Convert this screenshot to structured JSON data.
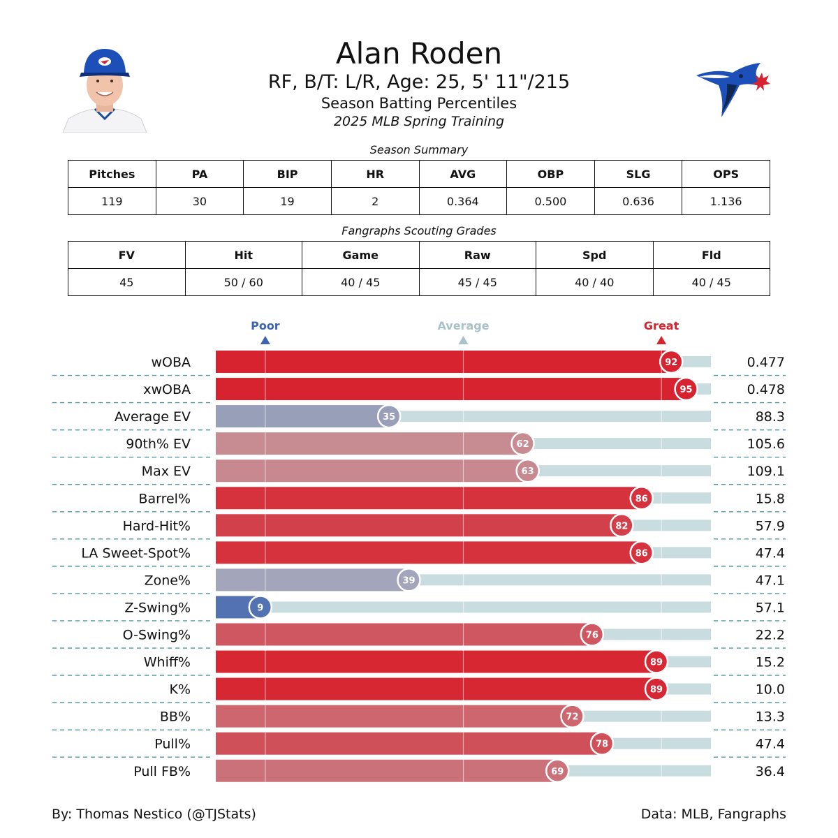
{
  "header": {
    "name": "Alan Roden",
    "info": "RF, B/T: L/R, Age: 25, 5' 11\"/215",
    "subtitle": "Season Batting Percentiles",
    "event": "2025 MLB Spring Training"
  },
  "season_summary": {
    "title": "Season Summary",
    "headers": [
      "Pitches",
      "PA",
      "BIP",
      "HR",
      "AVG",
      "OBP",
      "SLG",
      "OPS"
    ],
    "values": [
      "119",
      "30",
      "19",
      "2",
      "0.364",
      "0.500",
      "0.636",
      "1.136"
    ]
  },
  "scouting": {
    "title": "Fangraphs Scouting Grades",
    "headers": [
      "FV",
      "Hit",
      "Game",
      "Raw",
      "Spd",
      "Fld"
    ],
    "values": [
      "45",
      "50 / 60",
      "40 / 45",
      "45 / 45",
      "40 / 40",
      "40 / 45"
    ]
  },
  "icons": {
    "photo": "player-headshot",
    "logo": "toronto-blue-jays-logo"
  },
  "chart_data": {
    "type": "bar",
    "orientation": "horizontal",
    "scale_markers": [
      {
        "label": "Poor",
        "value": 10,
        "color": "#3a63b0"
      },
      {
        "label": "Average",
        "value": 50,
        "color": "#a9c2c9"
      },
      {
        "label": "Great",
        "value": 90,
        "color": "#d7232f"
      }
    ],
    "xlim": [
      0,
      100
    ],
    "colors": {
      "low": "#3a63b0",
      "mid": "#c0b8bd",
      "high": "#d7232f",
      "track": "#c9dde0"
    },
    "categories": [
      "wOBA",
      "xwOBA",
      "Average EV",
      "90th% EV",
      "Max EV",
      "Barrel%",
      "Hard-Hit%",
      "LA Sweet-Spot%",
      "Zone%",
      "Z-Swing%",
      "O-Swing%",
      "Whiff%",
      "K%",
      "BB%",
      "Pull%",
      "Pull FB%"
    ],
    "percentiles": [
      92,
      95,
      35,
      62,
      63,
      86,
      82,
      86,
      39,
      9,
      76,
      89,
      89,
      72,
      78,
      69
    ],
    "stat_values": [
      "0.477",
      "0.478",
      "88.3",
      "105.6",
      "109.1",
      "15.8",
      "57.9",
      "47.4",
      "47.1",
      "57.1",
      "22.2",
      "15.2",
      "10.0",
      "13.3",
      "47.4",
      "36.4"
    ]
  },
  "footer": {
    "credit": "By: Thomas Nestico (@TJStats)",
    "source": "Data: MLB, Fangraphs"
  }
}
